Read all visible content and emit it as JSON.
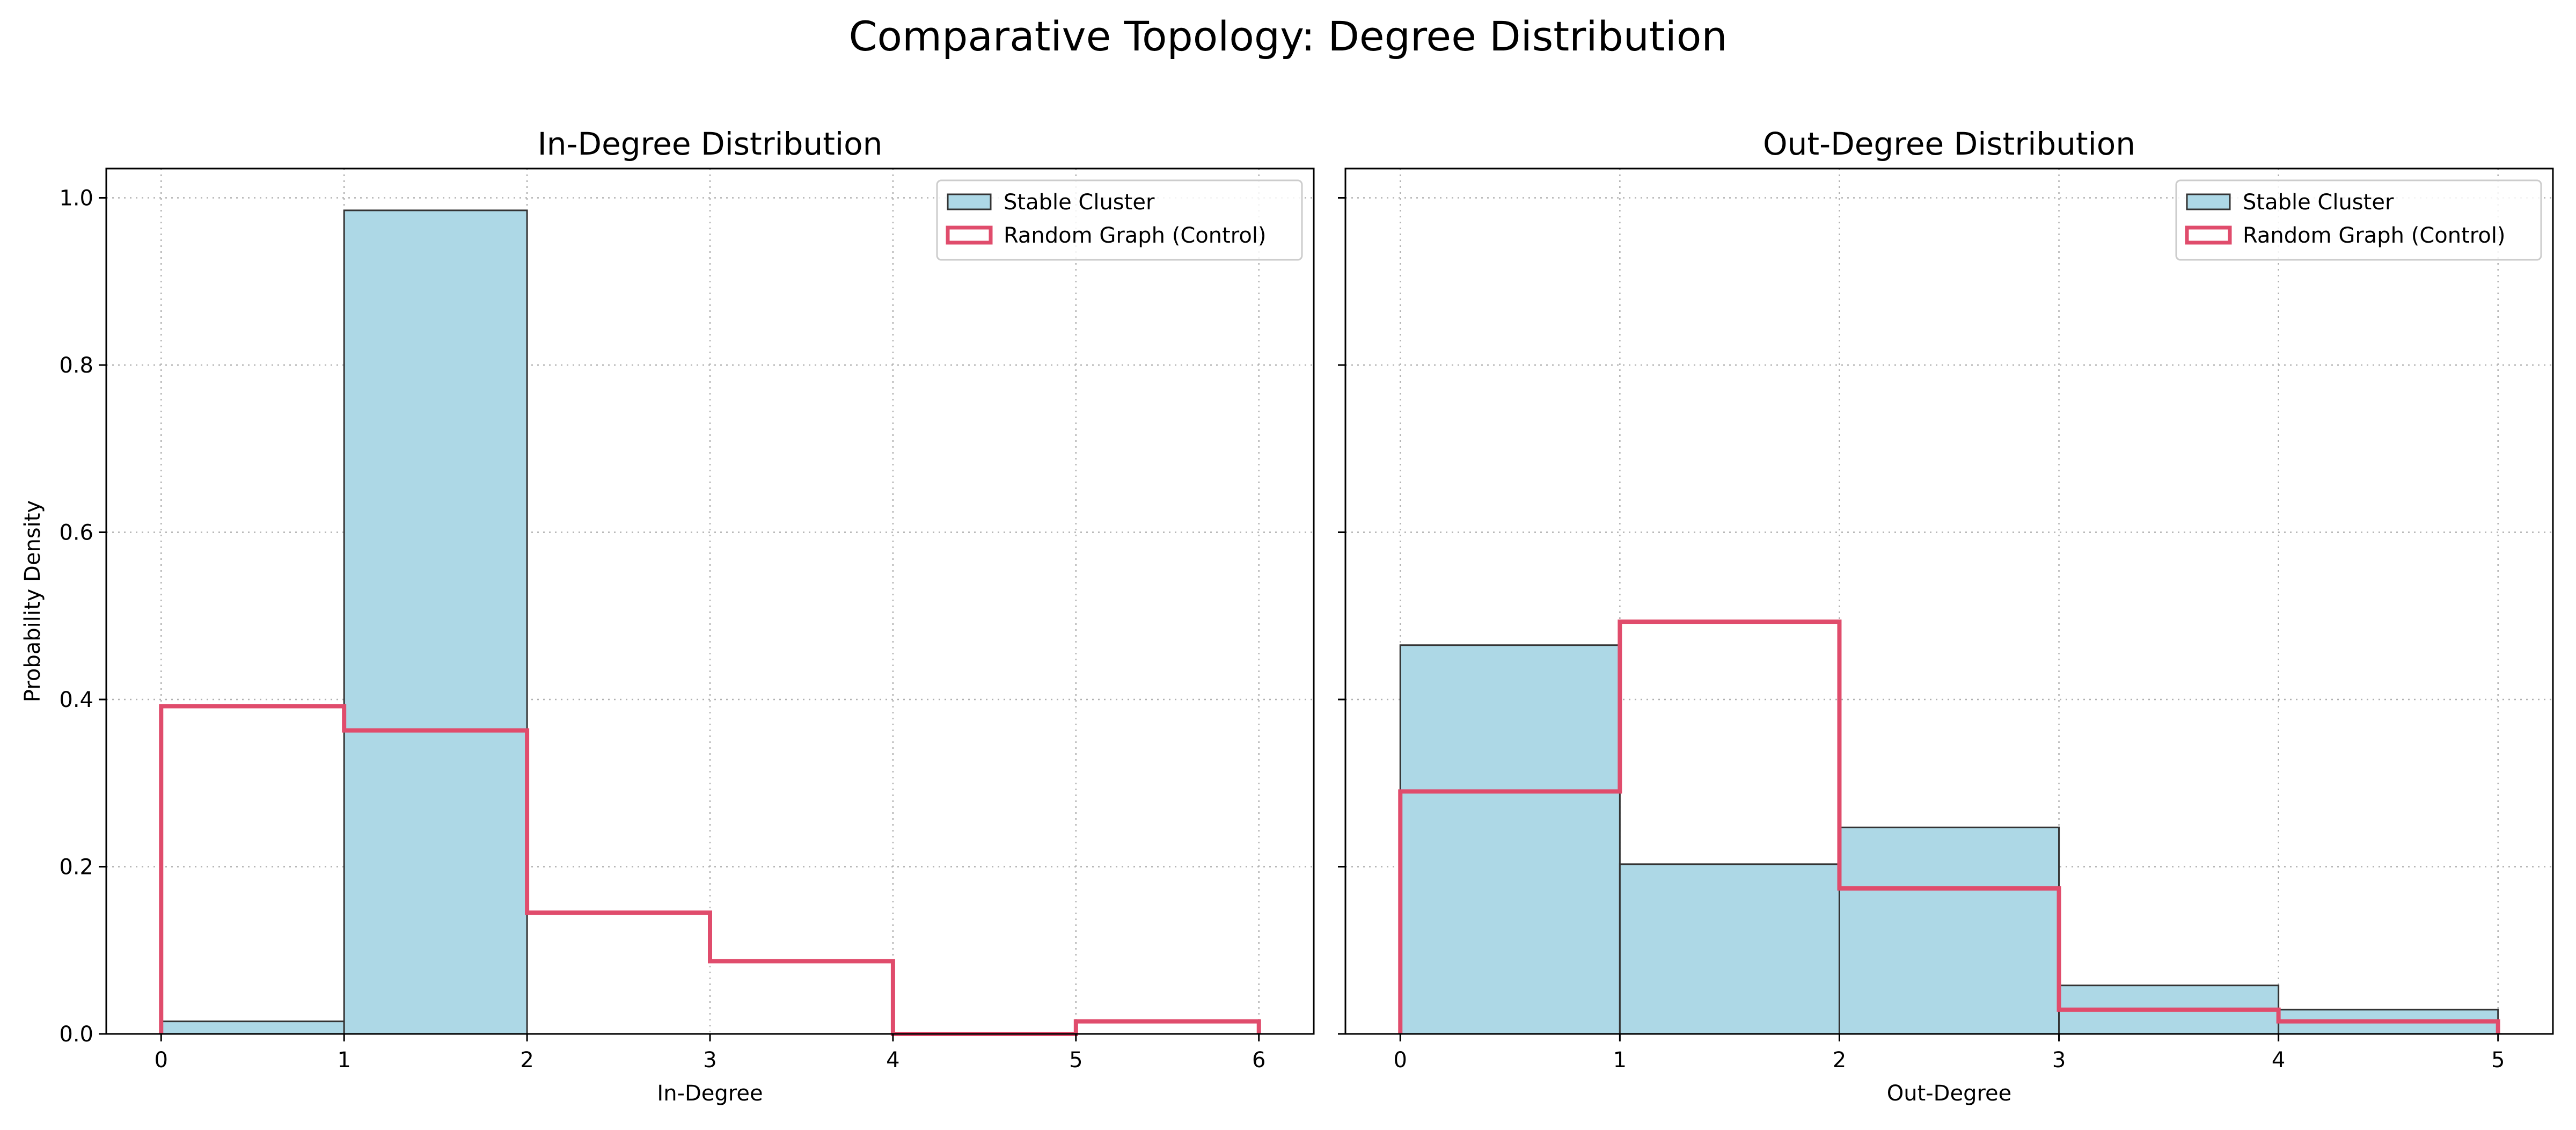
{
  "figure": {
    "suptitle": "Comparative Topology: Degree Distribution"
  },
  "colors": {
    "stable_fill": "#add8e6",
    "stable_edge": "#333333",
    "random_line": "#e04c6c",
    "grid": "#b0b0b0"
  },
  "chart_data": [
    {
      "type": "histogram",
      "title": "In-Degree Distribution",
      "xlabel": "In-Degree",
      "ylabel": "Probability Density",
      "xlim": [
        -0.3,
        6.3
      ],
      "ylim": [
        0,
        1.035
      ],
      "xticks": [
        0,
        1,
        2,
        3,
        4,
        5,
        6
      ],
      "yticks": [
        0.0,
        0.2,
        0.4,
        0.6,
        0.8,
        1.0
      ],
      "xtick_labels": [
        "0",
        "1",
        "2",
        "3",
        "4",
        "5",
        "6"
      ],
      "ytick_labels": [
        "0.0",
        "0.2",
        "0.4",
        "0.6",
        "0.8",
        "1.0"
      ],
      "grid": true,
      "legend": "upper-right",
      "series": [
        {
          "name": "Stable Cluster",
          "style": "filled-bars",
          "bin_edges": [
            0,
            1,
            2
          ],
          "values": [
            0.015,
            0.985
          ]
        },
        {
          "name": "Random Graph (Control)",
          "style": "step",
          "bin_edges": [
            0,
            1,
            2,
            3,
            4,
            5,
            6
          ],
          "values": [
            0.392,
            0.363,
            0.145,
            0.087,
            0.0,
            0.015
          ]
        }
      ]
    },
    {
      "type": "histogram",
      "title": "Out-Degree Distribution",
      "xlabel": "Out-Degree",
      "ylabel": "",
      "xlim": [
        -0.25,
        5.25
      ],
      "ylim": [
        0,
        1.035
      ],
      "xticks": [
        0,
        1,
        2,
        3,
        4,
        5
      ],
      "yticks": [
        0.0,
        0.2,
        0.4,
        0.6,
        0.8,
        1.0
      ],
      "xtick_labels": [
        "0",
        "1",
        "2",
        "3",
        "4",
        "5"
      ],
      "ytick_labels": [],
      "grid": true,
      "legend": "upper-right",
      "series": [
        {
          "name": "Stable Cluster",
          "style": "filled-bars",
          "bin_edges": [
            0,
            1,
            2,
            3,
            4,
            5
          ],
          "values": [
            0.465,
            0.203,
            0.247,
            0.058,
            0.029
          ]
        },
        {
          "name": "Random Graph (Control)",
          "style": "step",
          "bin_edges": [
            0,
            1,
            2,
            3,
            4,
            5
          ],
          "values": [
            0.29,
            0.493,
            0.174,
            0.029,
            0.015
          ]
        }
      ]
    }
  ]
}
